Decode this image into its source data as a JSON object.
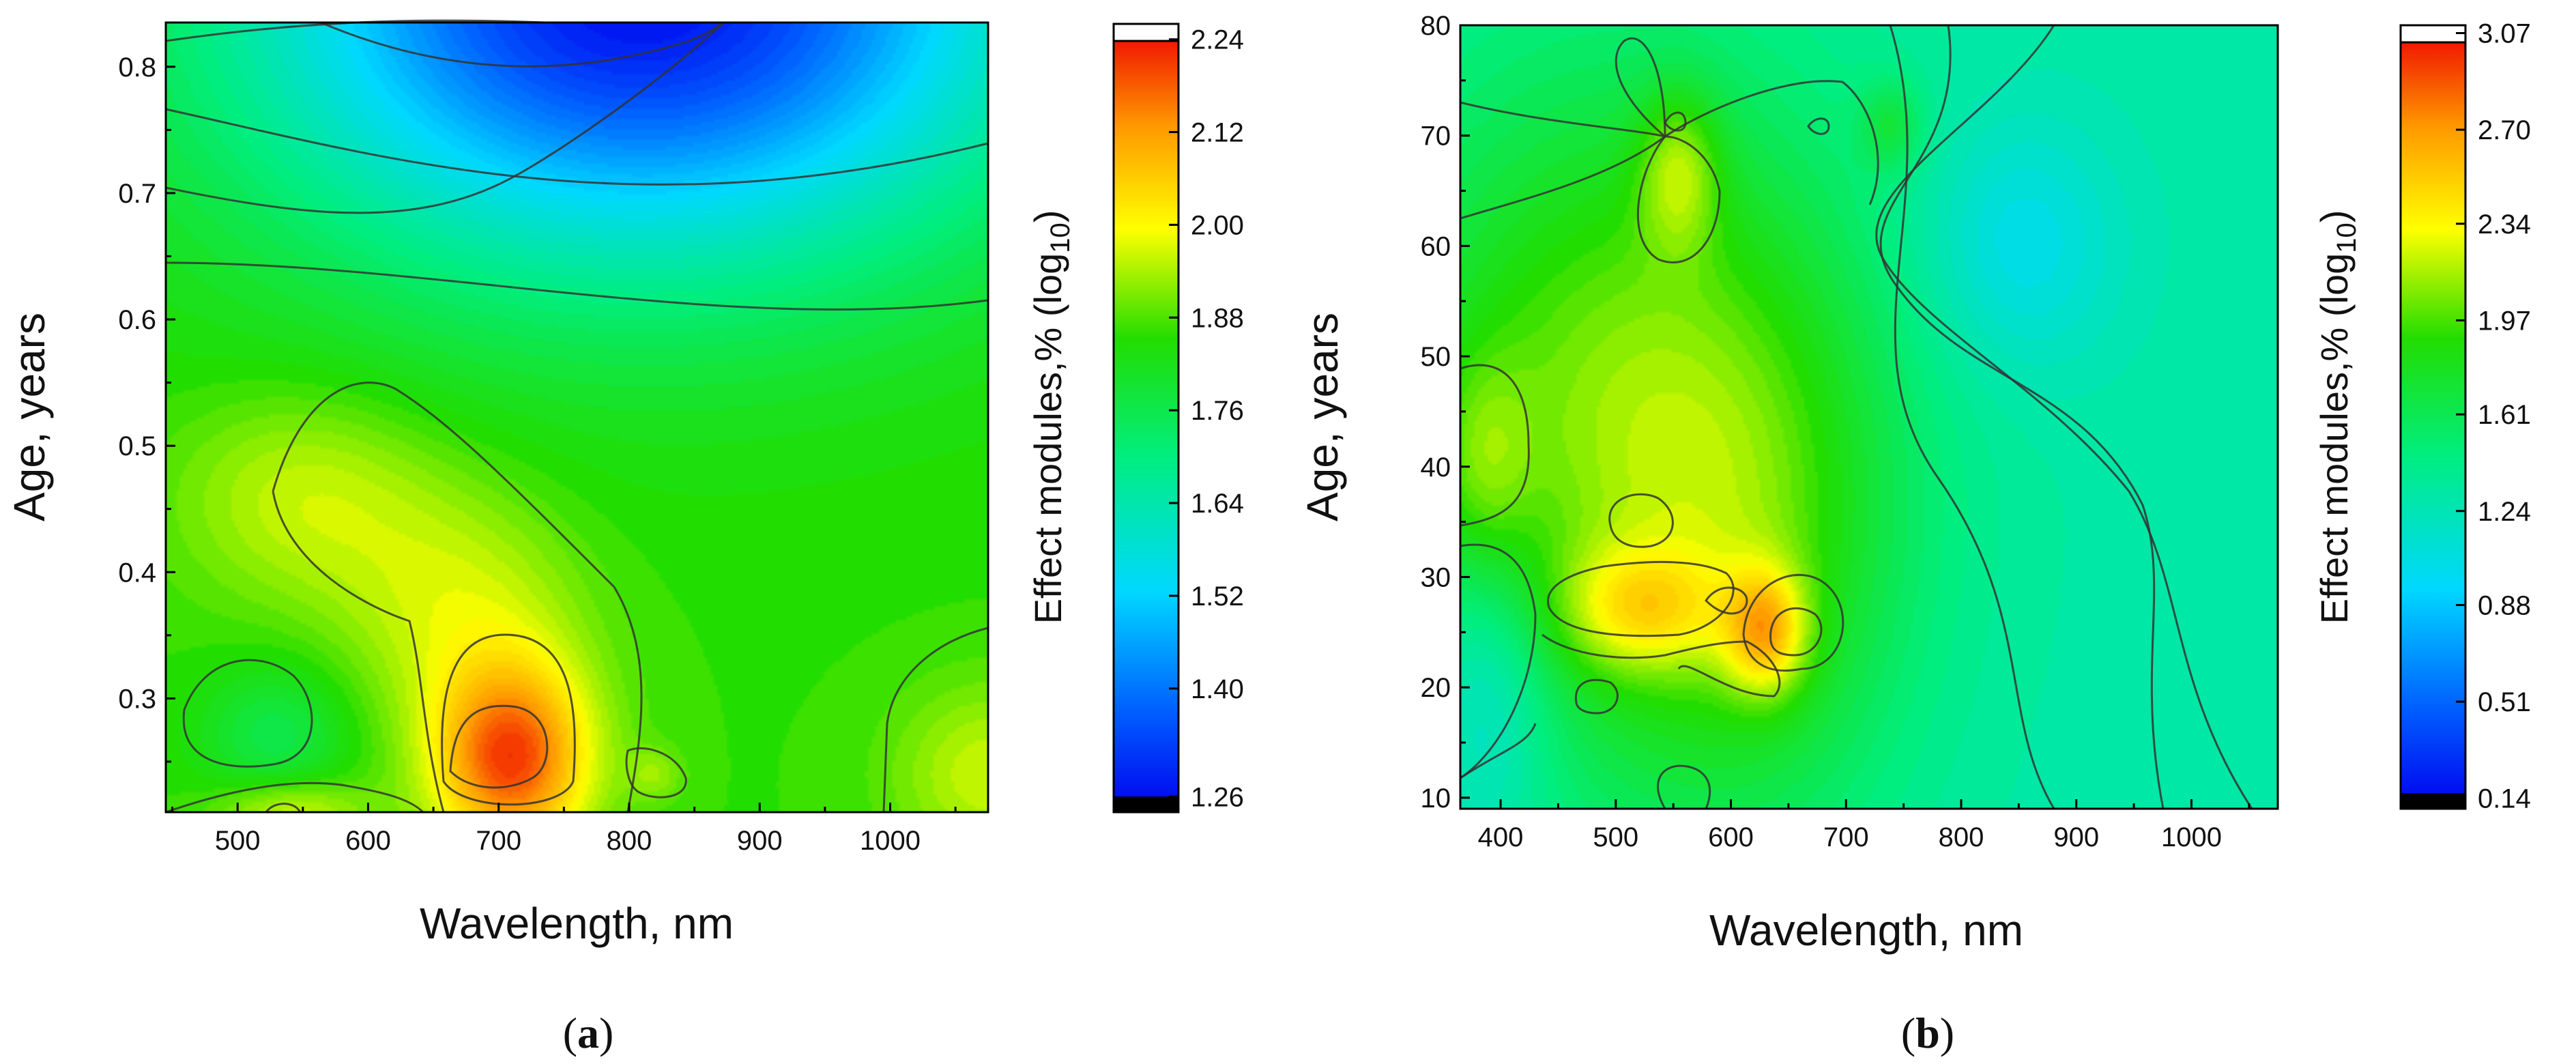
{
  "chart_data": [
    {
      "type": "heatmap",
      "panel_label": "a",
      "xlabel": "Wavelength, nm",
      "ylabel": "Age, years",
      "xlim": [
        445,
        1075
      ],
      "ylim": [
        0.21,
        0.835
      ],
      "x_ticks": [
        500,
        600,
        700,
        800,
        900,
        1000
      ],
      "y_ticks": [
        0.3,
        0.4,
        0.5,
        0.6,
        0.7,
        0.8
      ],
      "x_tick_labels": [
        "500",
        "600",
        "700",
        "800",
        "900",
        "1000"
      ],
      "y_tick_labels": [
        "0.3",
        "0.4",
        "0.5",
        "0.6",
        "0.7",
        "0.8"
      ],
      "colorbar": {
        "title_prefix": "Effect modules,% (log",
        "title_sub": "10",
        "title_suffix": ")",
        "range": [
          1.24,
          2.26
        ],
        "ticks": [
          1.26,
          1.4,
          1.52,
          1.64,
          1.76,
          1.88,
          2.0,
          2.12,
          2.24
        ],
        "tick_labels": [
          "1.26",
          "1.40",
          "1.52",
          "1.64",
          "1.76",
          "1.88",
          "2.00",
          "2.12",
          "2.24"
        ]
      },
      "base_value": 1.86,
      "features": [
        {
          "x": 810,
          "y": 0.86,
          "sx": 210,
          "sy": 0.15,
          "amp": -0.6,
          "desc": "blue minimum near top"
        },
        {
          "x": 710,
          "y": 0.25,
          "sx": 40,
          "sy": 0.05,
          "amp": 0.28,
          "desc": "red peak"
        },
        {
          "x": 705,
          "y": 0.3,
          "sx": 55,
          "sy": 0.09,
          "amp": 0.08,
          "desc": "orange halo"
        },
        {
          "x": 550,
          "y": 0.46,
          "sx": 70,
          "sy": 0.06,
          "amp": 0.1,
          "desc": "yellow-green lobe"
        },
        {
          "x": 650,
          "y": 0.38,
          "sx": 60,
          "sy": 0.07,
          "amp": 0.07,
          "desc": "bridge"
        },
        {
          "x": 540,
          "y": 0.21,
          "sx": 40,
          "sy": 0.02,
          "amp": 0.12,
          "desc": "bottom orange"
        },
        {
          "x": 530,
          "y": 0.27,
          "sx": 40,
          "sy": 0.04,
          "amp": -0.1,
          "desc": "green pocket"
        },
        {
          "x": 1075,
          "y": 0.24,
          "sx": 50,
          "sy": 0.05,
          "amp": 0.1,
          "desc": "corner lobe"
        },
        {
          "x": 820,
          "y": 0.24,
          "sx": 15,
          "sy": 0.015,
          "amp": 0.06,
          "desc": "small island"
        }
      ]
    },
    {
      "type": "heatmap",
      "panel_label": "b",
      "xlabel": "Wavelength, nm",
      "ylabel": "Age, years",
      "xlim": [
        365,
        1075
      ],
      "ylim": [
        9,
        80
      ],
      "x_ticks": [
        400,
        500,
        600,
        700,
        800,
        900,
        1000
      ],
      "y_ticks": [
        10,
        20,
        30,
        40,
        50,
        60,
        70,
        80
      ],
      "x_tick_labels": [
        "400",
        "500",
        "600",
        "700",
        "800",
        "900",
        "1000"
      ],
      "y_tick_labels": [
        "10",
        "20",
        "30",
        "40",
        "50",
        "60",
        "70",
        "80"
      ],
      "colorbar": {
        "title_prefix": "Effect modules,% (log",
        "title_sub": "10",
        "title_suffix": ")",
        "range": [
          0.1,
          3.1
        ],
        "ticks": [
          0.14,
          0.51,
          0.88,
          1.24,
          1.61,
          1.97,
          2.34,
          2.7,
          3.07
        ],
        "tick_labels": [
          "0.14",
          "0.51",
          "0.88",
          "1.24",
          "1.61",
          "1.97",
          "2.34",
          "2.70",
          "3.07"
        ]
      },
      "base_value": 1.3,
      "features": [
        {
          "x": 500,
          "y": 45,
          "sx": 150,
          "sy": 22,
          "amp": 0.75,
          "desc": "yellow band"
        },
        {
          "x": 620,
          "y": 30,
          "sx": 90,
          "sy": 18,
          "amp": 0.35,
          "desc": "central rise"
        },
        {
          "x": 630,
          "y": 25,
          "sx": 25,
          "sy": 4,
          "amp": 0.7,
          "desc": "red peak"
        },
        {
          "x": 520,
          "y": 27,
          "sx": 50,
          "sy": 4,
          "amp": 0.5,
          "desc": "orange ridge"
        },
        {
          "x": 555,
          "y": 67,
          "sx": 25,
          "sy": 5,
          "amp": 0.45,
          "desc": "upper orange"
        },
        {
          "x": 385,
          "y": 40,
          "sx": 30,
          "sy": 7,
          "amp": 0.3,
          "desc": "left orange"
        },
        {
          "x": 740,
          "y": 71,
          "sx": 20,
          "sy": 3,
          "amp": 0.3,
          "desc": "small upper"
        },
        {
          "x": 850,
          "y": 60,
          "sx": 60,
          "sy": 8,
          "amp": -0.3,
          "desc": "cyan pocket"
        },
        {
          "x": 390,
          "y": 20,
          "sx": 40,
          "sy": 10,
          "amp": -0.35,
          "desc": "green pocket"
        }
      ]
    }
  ]
}
